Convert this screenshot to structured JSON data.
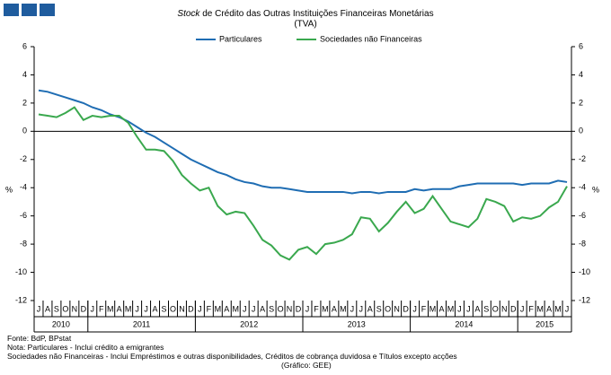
{
  "chart_data": {
    "type": "line",
    "title_emphasis": "Stock",
    "title": "de Crédito das Outras Instituições Financeiras Monetárias",
    "subtitle": "(TVA)",
    "y_label": "%",
    "y2_label": "%",
    "categories": [
      "J",
      "A",
      "S",
      "O",
      "N",
      "D",
      "J",
      "F",
      "M",
      "A",
      "M",
      "J",
      "J",
      "A",
      "S",
      "O",
      "N",
      "D",
      "J",
      "F",
      "M",
      "A",
      "M",
      "J",
      "J",
      "A",
      "S",
      "O",
      "N",
      "D",
      "J",
      "F",
      "M",
      "A",
      "M",
      "J",
      "J",
      "A",
      "S",
      "O",
      "N",
      "D",
      "J",
      "F",
      "M",
      "A",
      "M",
      "J",
      "J",
      "A",
      "S",
      "O",
      "N",
      "D",
      "J",
      "F",
      "M",
      "A",
      "M",
      "J"
    ],
    "years": [
      "2010",
      "2011",
      "2012",
      "2013",
      "2014",
      "2015"
    ],
    "series": [
      {
        "name": "Particulares",
        "color": "#1f6db3",
        "values": [
          2.9,
          2.8,
          2.6,
          2.4,
          2.2,
          2.0,
          1.7,
          1.5,
          1.2,
          1.0,
          0.7,
          0.3,
          -0.1,
          -0.4,
          -0.8,
          -1.2,
          -1.6,
          -2.0,
          -2.3,
          -2.6,
          -2.9,
          -3.1,
          -3.4,
          -3.6,
          -3.7,
          -3.9,
          -4.0,
          -4.0,
          -4.1,
          -4.2,
          -4.3,
          -4.3,
          -4.3,
          -4.3,
          -4.3,
          -4.4,
          -4.3,
          -4.3,
          -4.4,
          -4.3,
          -4.3,
          -4.3,
          -4.1,
          -4.2,
          -4.1,
          -4.1,
          -4.1,
          -3.9,
          -3.8,
          -3.7,
          -3.7,
          -3.7,
          -3.7,
          -3.7,
          -3.8,
          -3.7,
          -3.7,
          -3.7,
          -3.5,
          -3.6
        ]
      },
      {
        "name": "Sociedades não Financeiras",
        "color": "#3aa84e",
        "values": [
          1.2,
          1.1,
          1.0,
          1.3,
          1.7,
          0.8,
          1.1,
          1.0,
          1.1,
          1.1,
          0.6,
          -0.4,
          -1.3,
          -1.3,
          -1.4,
          -2.1,
          -3.1,
          -3.7,
          -4.2,
          -4.0,
          -5.3,
          -5.9,
          -5.7,
          -5.8,
          -6.7,
          -7.7,
          -8.1,
          -8.8,
          -9.1,
          -8.4,
          -8.2,
          -8.7,
          -8.0,
          -7.9,
          -7.7,
          -7.3,
          -6.1,
          -6.2,
          -7.1,
          -6.5,
          -5.7,
          -5.0,
          -5.8,
          -5.5,
          -4.6,
          -5.5,
          -6.4,
          -6.6,
          -6.8,
          -6.2,
          -4.8,
          -5.0,
          -5.3,
          -6.4,
          -6.1,
          -6.2,
          -6.0,
          -5.4,
          -5.0,
          -3.9
        ]
      }
    ],
    "ylim": [
      -12,
      6
    ],
    "yticks": [
      -12,
      -10,
      -8,
      -6,
      -4,
      -2,
      0,
      2,
      4,
      6
    ],
    "y2lim": [
      -12,
      6
    ],
    "y2ticks": [
      -12,
      -10,
      -8,
      -6,
      -4,
      -2,
      0,
      2,
      4,
      6
    ],
    "legend": "top",
    "notes": [
      "Fonte: BdP, BPstat",
      "Nota: Particulares - Inclui crédito a emigrantes",
      "Sociedades não Financeiras - Inclui Empréstimos e outras disponibilidades, Créditos de cobrança duvidosa e Títulos excepto acções"
    ],
    "credit": "(Gráfico: GEE)"
  }
}
